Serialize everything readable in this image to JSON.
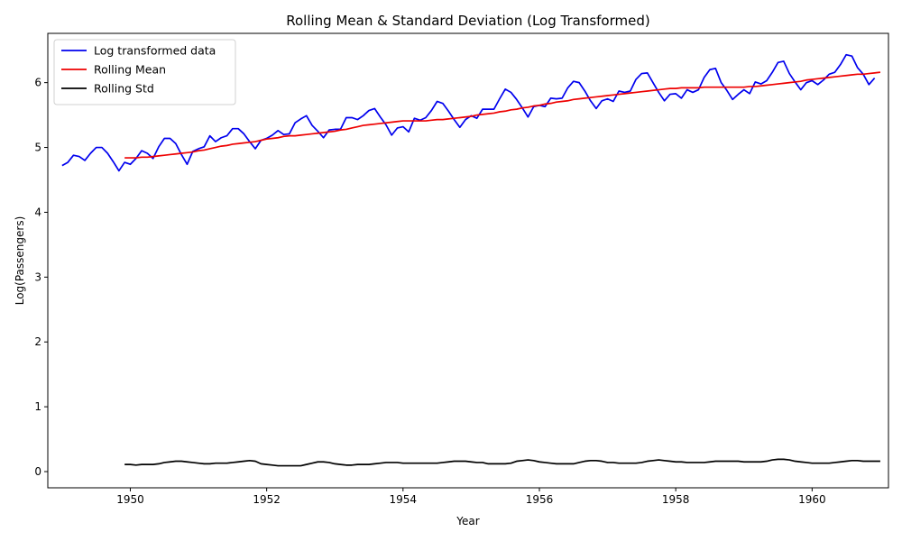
{
  "chart_data": {
    "type": "line",
    "title": "Rolling Mean & Standard Deviation (Log Transformed)",
    "xlabel": "Year",
    "ylabel": "Log(Passengers)",
    "xlim": [
      1948.79,
      1961.12
    ],
    "ylim": [
      -0.25,
      6.76
    ],
    "xticks": [
      1950,
      1952,
      1954,
      1956,
      1958,
      1960
    ],
    "yticks": [
      0,
      1,
      2,
      3,
      4,
      5,
      6
    ],
    "grid": false,
    "legend_position": "top-left",
    "x_start": 1949.0,
    "x_step": 0.083333,
    "series": [
      {
        "name": "Log transformed data",
        "color": "#0000ee",
        "start_index": 0,
        "values": [
          4.72,
          4.77,
          4.88,
          4.86,
          4.8,
          4.91,
          5.0,
          5.0,
          4.91,
          4.78,
          4.64,
          4.77,
          4.74,
          4.83,
          4.95,
          4.91,
          4.83,
          5.01,
          5.14,
          5.14,
          5.06,
          4.89,
          4.74,
          4.94,
          4.98,
          5.01,
          5.18,
          5.09,
          5.15,
          5.18,
          5.29,
          5.29,
          5.21,
          5.09,
          4.98,
          5.11,
          5.14,
          5.19,
          5.26,
          5.2,
          5.21,
          5.38,
          5.44,
          5.49,
          5.34,
          5.25,
          5.15,
          5.27,
          5.28,
          5.28,
          5.46,
          5.46,
          5.43,
          5.49,
          5.57,
          5.6,
          5.47,
          5.35,
          5.19,
          5.3,
          5.32,
          5.24,
          5.45,
          5.42,
          5.46,
          5.57,
          5.71,
          5.68,
          5.56,
          5.43,
          5.31,
          5.43,
          5.49,
          5.45,
          5.59,
          5.59,
          5.59,
          5.75,
          5.9,
          5.85,
          5.74,
          5.61,
          5.47,
          5.63,
          5.65,
          5.63,
          5.76,
          5.75,
          5.76,
          5.92,
          6.02,
          6.0,
          5.87,
          5.72,
          5.6,
          5.72,
          5.75,
          5.71,
          5.87,
          5.85,
          5.87,
          6.05,
          6.14,
          6.15,
          6.0,
          5.85,
          5.72,
          5.82,
          5.83,
          5.76,
          5.89,
          5.85,
          5.89,
          6.08,
          6.2,
          6.22,
          6.0,
          5.88,
          5.74,
          5.82,
          5.89,
          5.83,
          6.01,
          5.98,
          6.03,
          6.16,
          6.31,
          6.33,
          6.14,
          6.01,
          5.89,
          6.0,
          6.03,
          5.97,
          6.04,
          6.13,
          6.16,
          6.28,
          6.43,
          6.41,
          6.23,
          6.13,
          5.97,
          6.07
        ]
      },
      {
        "name": "Rolling Mean",
        "color": "#ee0000",
        "start_index": 11,
        "values": [
          4.84,
          4.84,
          4.84,
          4.85,
          4.85,
          4.86,
          4.87,
          4.88,
          4.89,
          4.9,
          4.91,
          4.92,
          4.93,
          4.95,
          4.96,
          4.98,
          5.0,
          5.02,
          5.03,
          5.05,
          5.06,
          5.07,
          5.08,
          5.09,
          5.11,
          5.13,
          5.14,
          5.15,
          5.17,
          5.18,
          5.18,
          5.19,
          5.2,
          5.21,
          5.22,
          5.23,
          5.24,
          5.25,
          5.27,
          5.28,
          5.3,
          5.32,
          5.34,
          5.35,
          5.36,
          5.37,
          5.38,
          5.39,
          5.4,
          5.41,
          5.41,
          5.41,
          5.41,
          5.41,
          5.42,
          5.43,
          5.43,
          5.44,
          5.45,
          5.46,
          5.47,
          5.48,
          5.5,
          5.51,
          5.52,
          5.53,
          5.55,
          5.56,
          5.58,
          5.59,
          5.61,
          5.62,
          5.64,
          5.65,
          5.67,
          5.68,
          5.7,
          5.71,
          5.72,
          5.74,
          5.75,
          5.76,
          5.77,
          5.78,
          5.79,
          5.8,
          5.81,
          5.82,
          5.83,
          5.84,
          5.85,
          5.86,
          5.87,
          5.88,
          5.89,
          5.9,
          5.91,
          5.91,
          5.92,
          5.92,
          5.92,
          5.92,
          5.93,
          5.93,
          5.93,
          5.93,
          5.93,
          5.93,
          5.93,
          5.93,
          5.94,
          5.94,
          5.95,
          5.96,
          5.97,
          5.98,
          5.99,
          6.0,
          6.01,
          6.02,
          6.04,
          6.05,
          6.06,
          6.07,
          6.08,
          6.09,
          6.1,
          6.11,
          6.12,
          6.13,
          6.13,
          6.14,
          6.15,
          6.16
        ]
      },
      {
        "name": "Rolling Std",
        "color": "#000000",
        "start_index": 11,
        "values": [
          0.11,
          0.11,
          0.1,
          0.11,
          0.11,
          0.11,
          0.12,
          0.14,
          0.15,
          0.16,
          0.16,
          0.15,
          0.14,
          0.13,
          0.12,
          0.12,
          0.13,
          0.13,
          0.13,
          0.14,
          0.15,
          0.16,
          0.17,
          0.16,
          0.12,
          0.11,
          0.1,
          0.09,
          0.09,
          0.09,
          0.09,
          0.09,
          0.11,
          0.13,
          0.15,
          0.15,
          0.14,
          0.12,
          0.11,
          0.1,
          0.1,
          0.11,
          0.11,
          0.11,
          0.12,
          0.13,
          0.14,
          0.14,
          0.14,
          0.13,
          0.13,
          0.13,
          0.13,
          0.13,
          0.13,
          0.13,
          0.14,
          0.15,
          0.16,
          0.16,
          0.16,
          0.15,
          0.14,
          0.14,
          0.12,
          0.12,
          0.12,
          0.12,
          0.13,
          0.16,
          0.17,
          0.18,
          0.17,
          0.15,
          0.14,
          0.13,
          0.12,
          0.12,
          0.12,
          0.12,
          0.14,
          0.16,
          0.17,
          0.17,
          0.16,
          0.14,
          0.14,
          0.13,
          0.13,
          0.13,
          0.13,
          0.14,
          0.16,
          0.17,
          0.18,
          0.17,
          0.16,
          0.15,
          0.15,
          0.14,
          0.14,
          0.14,
          0.14,
          0.15,
          0.16,
          0.16,
          0.16,
          0.16,
          0.16,
          0.15,
          0.15,
          0.15,
          0.15,
          0.16,
          0.18,
          0.19,
          0.19,
          0.18,
          0.16,
          0.15,
          0.14,
          0.13,
          0.13,
          0.13,
          0.13,
          0.14,
          0.15,
          0.16,
          0.17,
          0.17,
          0.16,
          0.16,
          0.16,
          0.16
        ]
      }
    ]
  }
}
